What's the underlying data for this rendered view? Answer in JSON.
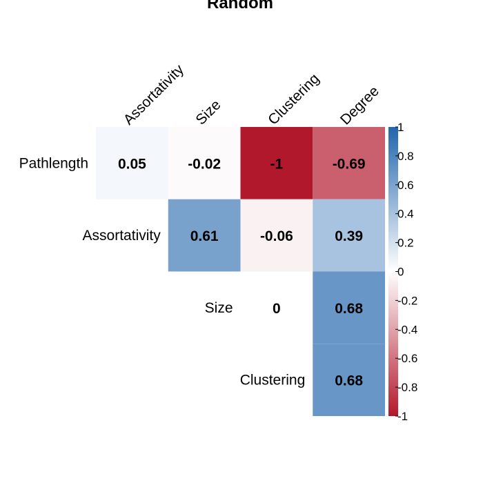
{
  "chart_data": {
    "type": "heatmap",
    "title": "Random",
    "column_labels": [
      "Assortativity",
      "Size",
      "Clustering",
      "Degree"
    ],
    "row_labels": [
      "Pathlength",
      "Assortativity",
      "Size",
      "Clustering"
    ],
    "cells": [
      {
        "row": "Pathlength",
        "col": "Assortativity",
        "value": 0.05,
        "label": "0.05"
      },
      {
        "row": "Pathlength",
        "col": "Size",
        "value": -0.02,
        "label": "-0.02"
      },
      {
        "row": "Pathlength",
        "col": "Clustering",
        "value": -1,
        "label": "-1"
      },
      {
        "row": "Pathlength",
        "col": "Degree",
        "value": -0.69,
        "label": "-0.69"
      },
      {
        "row": "Assortativity",
        "col": "Size",
        "value": 0.61,
        "label": "0.61"
      },
      {
        "row": "Assortativity",
        "col": "Clustering",
        "value": -0.06,
        "label": "-0.06"
      },
      {
        "row": "Assortativity",
        "col": "Degree",
        "value": 0.39,
        "label": "0.39"
      },
      {
        "row": "Size",
        "col": "Clustering",
        "value": 0,
        "label": "0"
      },
      {
        "row": "Size",
        "col": "Degree",
        "value": 0.68,
        "label": "0.68"
      },
      {
        "row": "Clustering",
        "col": "Degree",
        "value": 0.68,
        "label": "0.68"
      }
    ],
    "colorbar": {
      "range": [
        -1,
        1
      ],
      "ticks": [
        -1,
        -0.8,
        -0.6,
        -0.4,
        -0.2,
        0,
        0.2,
        0.4,
        0.6,
        0.8,
        1
      ],
      "tick_labels": [
        "-1",
        "-0.8",
        "-0.6",
        "-0.4",
        "-0.2",
        "0",
        "0.2",
        "0.4",
        "0.6",
        "0.8",
        "1"
      ],
      "low_color": "#B2182B",
      "mid_color": "#FFFFFF",
      "high_color": "#2166AC",
      "placement": "right"
    }
  }
}
